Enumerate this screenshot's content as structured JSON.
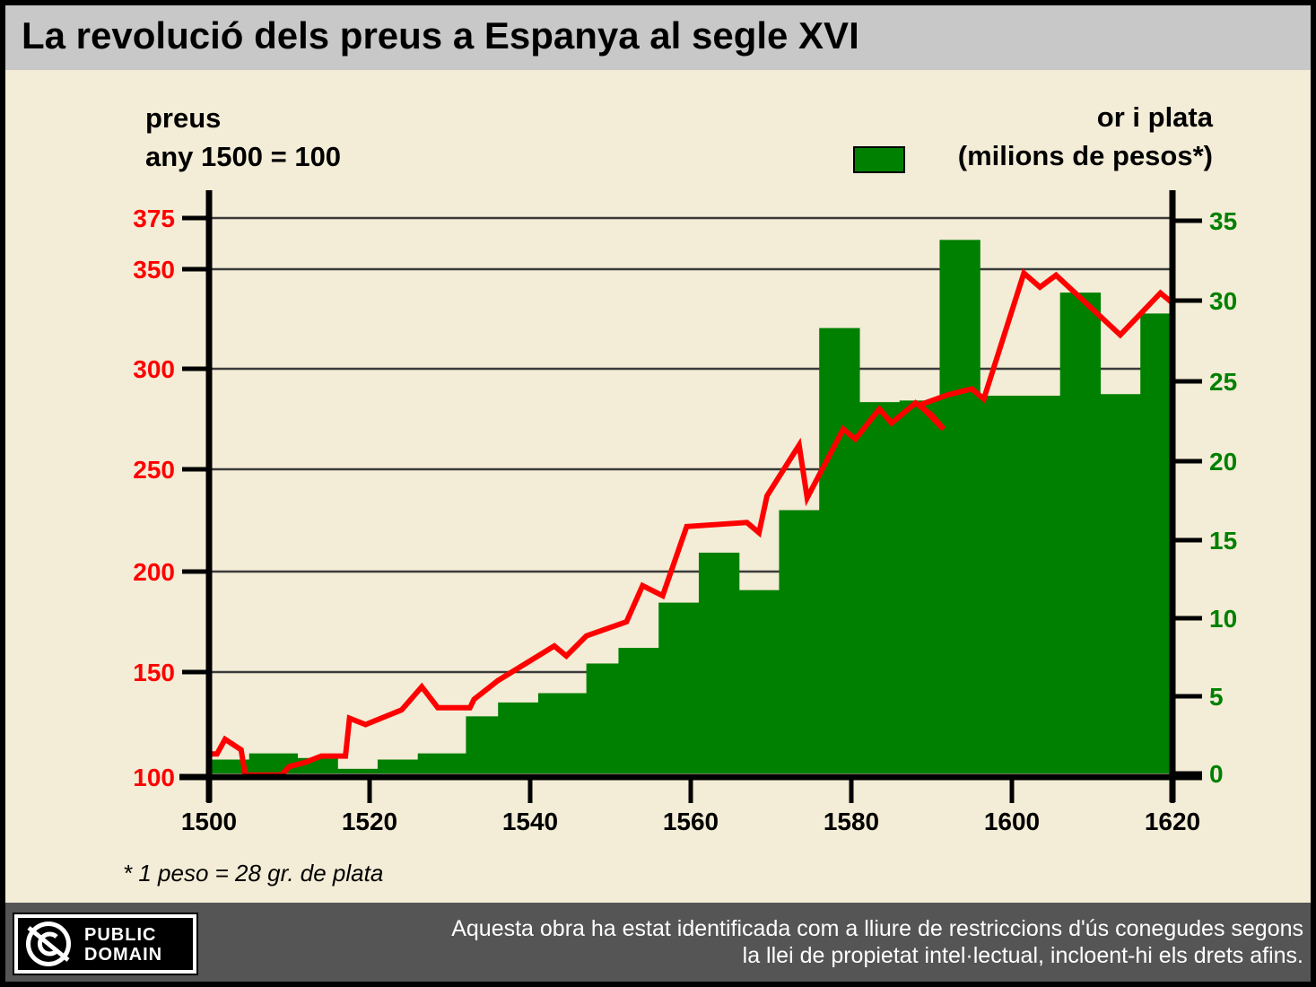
{
  "title": "La revolució dels preus a Espanya al segle XVI",
  "left_axis_label": [
    "preus",
    "any 1500 = 100"
  ],
  "right_axis_label": [
    "or i plata",
    "(milions de pesos*)"
  ],
  "footnote": "* 1 peso = 28 gr. de plata",
  "license": {
    "badge": [
      "PUBLIC",
      "DOMAIN"
    ],
    "text": [
      "Aquesta obra ha estat identificada com a lliure de restriccions d'ús conegudes segons",
      "la llei de propietat intel·lectual, incloent-hi els drets afins."
    ]
  },
  "colors": {
    "prices_line": "#ff0000",
    "silver_bars": "#008000",
    "left_axis_text": "#ff0000",
    "right_axis_text": "#008000",
    "background": "#f3ecd6"
  },
  "chart_data": {
    "type": "bar+line",
    "x_axis": {
      "range": [
        1500,
        1620
      ],
      "ticks": [
        1500,
        1520,
        1540,
        1560,
        1580,
        1600,
        1620
      ]
    },
    "left_axis": {
      "ticks": [
        100,
        150,
        200,
        250,
        300,
        350,
        375
      ],
      "gridlines": true
    },
    "right_axis": {
      "ticks": [
        0,
        5,
        10,
        15,
        20,
        25,
        30,
        35
      ]
    },
    "bars": {
      "name": "or i plata (milions de pesos*)",
      "data": [
        {
          "x0": 1500,
          "x1": 1505,
          "value": 0.9
        },
        {
          "x0": 1505,
          "x1": 1511,
          "value": 1.3
        },
        {
          "x0": 1511,
          "x1": 1516,
          "value": 1.0
        },
        {
          "x0": 1516,
          "x1": 1521,
          "value": 0.3
        },
        {
          "x0": 1521,
          "x1": 1526,
          "value": 0.9
        },
        {
          "x0": 1526,
          "x1": 1532,
          "value": 1.3
        },
        {
          "x0": 1532,
          "x1": 1536,
          "value": 3.7
        },
        {
          "x0": 1536,
          "x1": 1541,
          "value": 4.6
        },
        {
          "x0": 1541,
          "x1": 1547,
          "value": 5.2
        },
        {
          "x0": 1547,
          "x1": 1551,
          "value": 7.1
        },
        {
          "x0": 1551,
          "x1": 1556,
          "value": 8.1
        },
        {
          "x0": 1556,
          "x1": 1561,
          "value": 11.0
        },
        {
          "x0": 1561,
          "x1": 1566,
          "value": 14.2
        },
        {
          "x0": 1566,
          "x1": 1571,
          "value": 11.8
        },
        {
          "x0": 1571,
          "x1": 1576,
          "value": 16.9
        },
        {
          "x0": 1576,
          "x1": 1581,
          "value": 28.3
        },
        {
          "x0": 1581,
          "x1": 1586,
          "value": 23.7
        },
        {
          "x0": 1586,
          "x1": 1591,
          "value": 23.8
        },
        {
          "x0": 1591,
          "x1": 1596,
          "value": 33.8
        },
        {
          "x0": 1596,
          "x1": 1601,
          "value": 24.1
        },
        {
          "x0": 1601,
          "x1": 1606,
          "value": 24.1
        },
        {
          "x0": 1606,
          "x1": 1611,
          "value": 30.5
        },
        {
          "x0": 1611,
          "x1": 1616,
          "value": 24.2
        },
        {
          "x0": 1616,
          "x1": 1620,
          "value": 29.2
        }
      ]
    },
    "line": {
      "name": "preus (any 1500 = 100)",
      "points": [
        [
          1500,
          111
        ],
        [
          1501,
          111
        ],
        [
          1502,
          118
        ],
        [
          1504,
          113
        ],
        [
          1504.5,
          101
        ],
        [
          1506,
          101
        ],
        [
          1509,
          101
        ],
        [
          1510,
          105
        ],
        [
          1512,
          107
        ],
        [
          1514,
          110
        ],
        [
          1517,
          110
        ],
        [
          1517.5,
          128
        ],
        [
          1519.5,
          125
        ],
        [
          1524,
          132
        ],
        [
          1526.5,
          143
        ],
        [
          1528.5,
          133
        ],
        [
          1532.5,
          133
        ],
        [
          1533,
          137
        ],
        [
          1536,
          146
        ],
        [
          1543,
          163
        ],
        [
          1544.5,
          158
        ],
        [
          1547,
          168
        ],
        [
          1552,
          175
        ],
        [
          1554,
          193
        ],
        [
          1556.5,
          188
        ],
        [
          1559.5,
          222
        ],
        [
          1567,
          224
        ],
        [
          1568.5,
          219
        ],
        [
          1569.5,
          237
        ],
        [
          1573.5,
          262
        ],
        [
          1574.5,
          236
        ],
        [
          1579,
          270
        ],
        [
          1580.5,
          265
        ],
        [
          1583.5,
          280
        ],
        [
          1585,
          273
        ],
        [
          1588,
          283
        ],
        [
          1590,
          277
        ],
        [
          1591.5,
          270
        ],
        [
          1588.5,
          282
        ],
        [
          1592,
          287
        ],
        [
          1595,
          290
        ],
        [
          1596.5,
          285
        ],
        [
          1601.5,
          348
        ],
        [
          1603.5,
          341
        ],
        [
          1605.5,
          347
        ],
        [
          1613.5,
          317
        ],
        [
          1618.5,
          338
        ],
        [
          1620,
          333
        ]
      ]
    }
  }
}
